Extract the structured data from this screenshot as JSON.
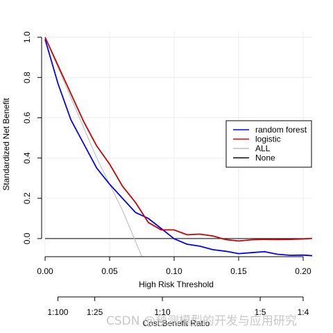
{
  "chart_data": {
    "type": "line",
    "xlabel": "High Risk Threshold",
    "ylabel": "Standardized Net Benefit",
    "xlim": [
      0.0,
      0.207
    ],
    "ylim": [
      -0.09,
      1.03
    ],
    "x_ticks": [
      "0.00",
      "0.05",
      "0.10",
      "0.15",
      "0.20"
    ],
    "x_tick_values": [
      0.0,
      0.05,
      0.1,
      0.15,
      0.2
    ],
    "y_ticks": [
      "0.0",
      "0.2",
      "0.4",
      "0.6",
      "0.8",
      "1.0"
    ],
    "y_tick_values": [
      0.0,
      0.2,
      0.4,
      0.6,
      0.8,
      1.0
    ],
    "grid": true,
    "cost_benefit_axis": {
      "label": "Cost:Benefit Ratio",
      "ticks": [
        "1:100",
        "1:25",
        "1:10",
        "1:5",
        "1:4"
      ],
      "tick_values": [
        0.0099,
        0.0385,
        0.0909,
        0.1667,
        0.2
      ]
    },
    "legend_position": "right",
    "series": [
      {
        "name": "random forest",
        "color": "#0000ff",
        "x": [
          0.0,
          0.01,
          0.02,
          0.03,
          0.04,
          0.05,
          0.06,
          0.07,
          0.08,
          0.09,
          0.1,
          0.11,
          0.12,
          0.13,
          0.14,
          0.15,
          0.16,
          0.17,
          0.18,
          0.19,
          0.2,
          0.207
        ],
        "y": [
          0.99,
          0.77,
          0.59,
          0.47,
          0.35,
          0.27,
          0.2,
          0.13,
          0.1,
          0.05,
          -0.001,
          -0.028,
          -0.038,
          -0.055,
          -0.063,
          -0.075,
          -0.07,
          -0.065,
          -0.078,
          -0.083,
          -0.082,
          -0.085
        ]
      },
      {
        "name": "logistic",
        "color": "#cc0000",
        "x": [
          0.0,
          0.01,
          0.02,
          0.03,
          0.04,
          0.05,
          0.06,
          0.07,
          0.08,
          0.09,
          0.1,
          0.11,
          0.12,
          0.13,
          0.14,
          0.15,
          0.16,
          0.17,
          0.18,
          0.19,
          0.2,
          0.207
        ],
        "y": [
          1.0,
          0.86,
          0.72,
          0.58,
          0.46,
          0.37,
          0.26,
          0.18,
          0.08,
          0.043,
          0.043,
          0.019,
          0.022,
          0.013,
          -0.005,
          -0.012,
          -0.006,
          -0.004,
          -0.005,
          -0.004,
          -0.002,
          0.001
        ]
      },
      {
        "name": "ALL",
        "color": "#bebebe",
        "x": [
          0.0,
          0.02,
          0.04,
          0.06,
          0.075
        ],
        "y": [
          1.0,
          0.7,
          0.4,
          0.14,
          -0.09
        ]
      },
      {
        "name": "None",
        "color": "#000000",
        "x": [
          0.0,
          0.207
        ],
        "y": [
          0.0,
          0.0
        ]
      }
    ]
  },
  "watermark": "CSDN @预测模型的开发与应用研究"
}
